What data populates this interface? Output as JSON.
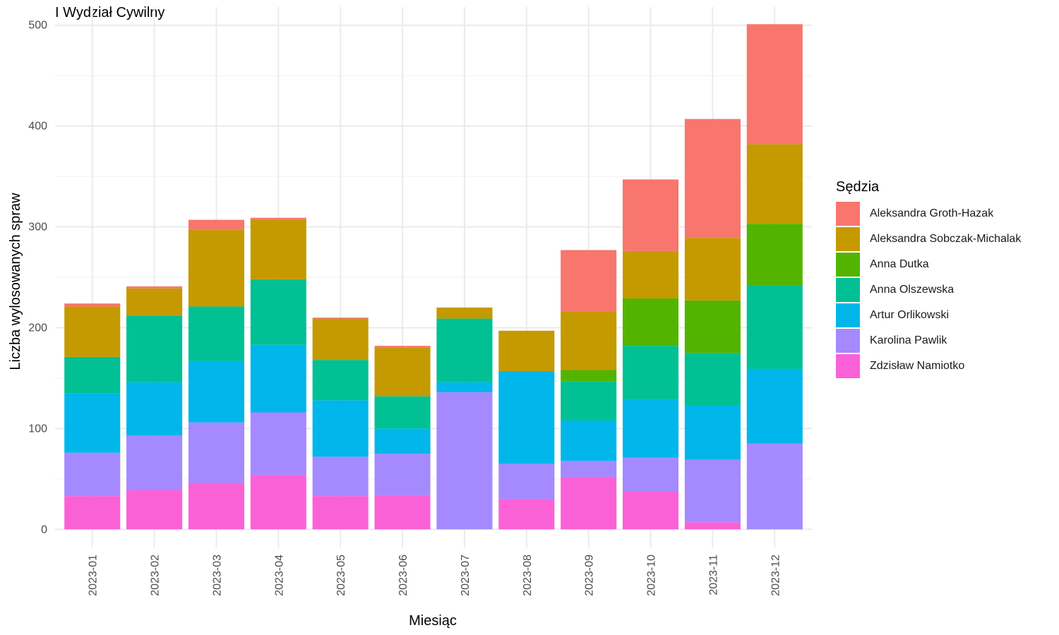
{
  "chart_data": {
    "type": "bar",
    "stacked": true,
    "title": "I Wydział Cywilny",
    "xlabel": "Miesiąc",
    "ylabel": "Liczba wylosowanych spraw",
    "ylim": [
      -18,
      518
    ],
    "yticks": [
      0,
      100,
      200,
      300,
      400,
      500
    ],
    "grid": true,
    "legend_title": "Sędzia",
    "legend_position": "right",
    "categories": [
      "2023-01",
      "2023-02",
      "2023-03",
      "2023-04",
      "2023-05",
      "2023-06",
      "2023-07",
      "2023-08",
      "2023-09",
      "2023-10",
      "2023-11",
      "2023-12"
    ],
    "series": [
      {
        "name": "Zdzisław Namiotko",
        "color": "#FB61D7",
        "values": [
          33,
          39,
          46,
          54,
          33,
          34,
          0,
          30,
          52,
          38,
          7,
          0
        ]
      },
      {
        "name": "Karolina Pawlik",
        "color": "#A58AFF",
        "values": [
          43,
          54,
          60,
          62,
          39,
          41,
          136,
          35,
          16,
          33,
          62,
          85
        ]
      },
      {
        "name": "Artur Orlikowski",
        "color": "#00B6EB",
        "values": [
          59,
          53,
          61,
          67,
          56,
          25,
          10,
          92,
          40,
          58,
          54,
          74
        ]
      },
      {
        "name": "Anna Olszewska",
        "color": "#00C094",
        "values": [
          36,
          66,
          54,
          65,
          40,
          32,
          63,
          0,
          39,
          53,
          52,
          83
        ]
      },
      {
        "name": "Anna Dutka",
        "color": "#53B400",
        "values": [
          0,
          0,
          0,
          0,
          0,
          0,
          0,
          0,
          11,
          47,
          52,
          61
        ]
      },
      {
        "name": "Aleksandra Sobczak-Michalak",
        "color": "#C49A00",
        "values": [
          50,
          27,
          76,
          59,
          41,
          48,
          11,
          40,
          58,
          47,
          62,
          79
        ]
      },
      {
        "name": "Aleksandra Groth-Hazak",
        "color": "#F8766D",
        "values": [
          3,
          2,
          10,
          2,
          1,
          2,
          0,
          0,
          61,
          71,
          118,
          119
        ]
      }
    ]
  },
  "legend": {
    "title": "Sędzia",
    "items": [
      {
        "label": "Aleksandra Groth-Hazak",
        "color": "#F8766D"
      },
      {
        "label": "Aleksandra Sobczak-Michalak",
        "color": "#C49A00"
      },
      {
        "label": "Anna Dutka",
        "color": "#53B400"
      },
      {
        "label": "Anna Olszewska",
        "color": "#00C094"
      },
      {
        "label": "Artur Orlikowski",
        "color": "#00B6EB"
      },
      {
        "label": "Karolina Pawlik",
        "color": "#A58AFF"
      },
      {
        "label": "Zdzisław Namiotko",
        "color": "#FB61D7"
      }
    ]
  }
}
